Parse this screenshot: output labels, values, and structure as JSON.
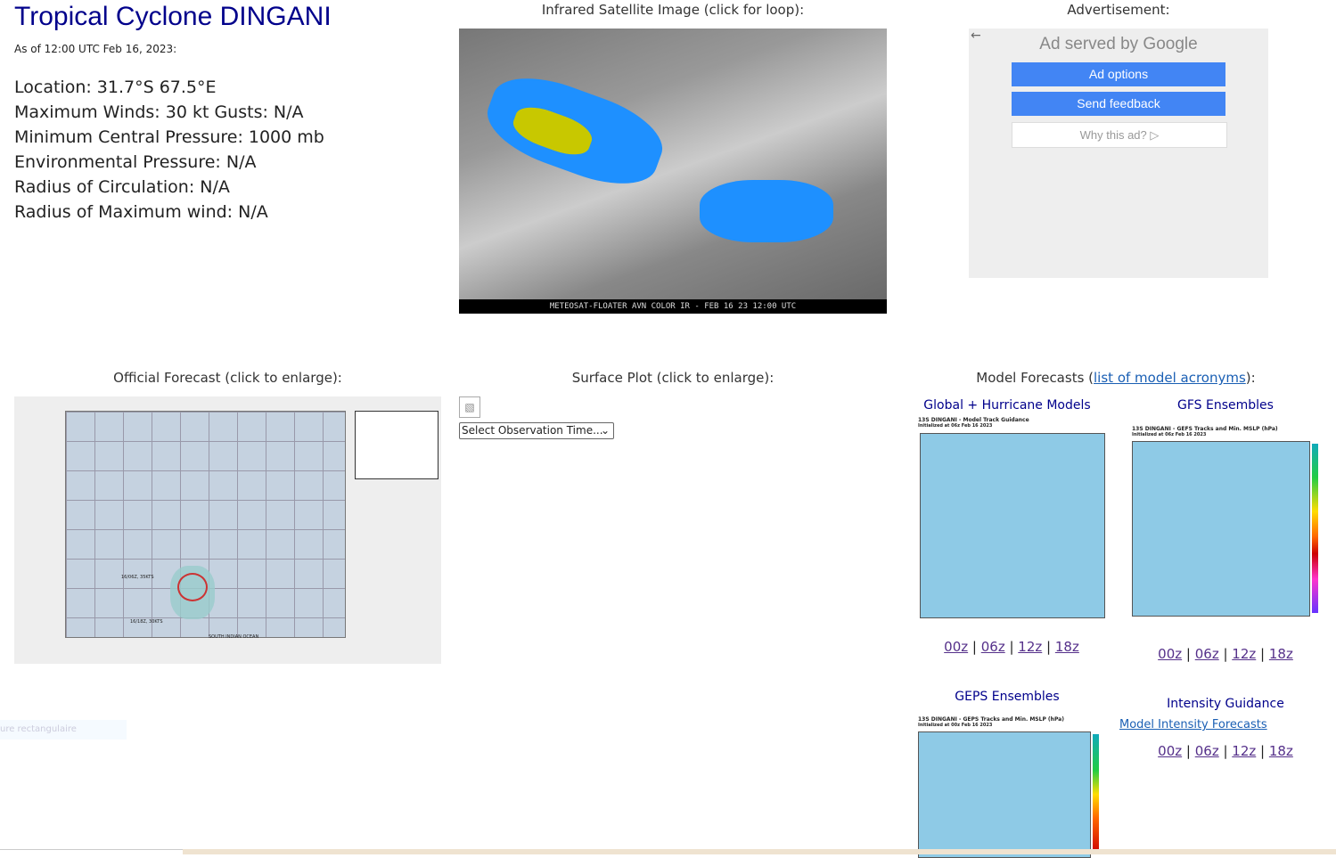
{
  "title": "Tropical Cyclone DINGANI",
  "as_of": "As of 12:00 UTC Feb 16, 2023:",
  "info": [
    "Location: 31.7°S 67.5°E",
    "Maximum Winds: 30 kt  Gusts: N/A",
    "Minimum Central Pressure: 1000 mb",
    "Environmental Pressure: N/A",
    "Radius of Circulation: N/A",
    "Radius of Maximum wind: N/A"
  ],
  "satellite": {
    "caption": "Infrared Satellite Image (click for loop):",
    "footer": "METEOSAT-FLOATER AVN COLOR IR - FEB 16 23 12:00 UTC"
  },
  "ad": {
    "caption": "Advertisement:",
    "served": "Ad served by Google",
    "options": "Ad options",
    "feedback": "Send feedback",
    "why": "Why this ad? ▷"
  },
  "official": {
    "caption": "Official Forecast (click to enlarge):",
    "label1": "16/06Z, 35KTS",
    "label2": "16/18Z, 30KTS",
    "ocean": "SOUTH INDIAN OCEAN"
  },
  "surface": {
    "caption": "Surface Plot (click to enlarge):",
    "select": "Select Observation Time..."
  },
  "models": {
    "caption_pre": "Model Forecasts (",
    "link": "list of model acronyms",
    "caption_post": "):",
    "global": {
      "title": "Global + Hurricane Models",
      "img_title": "13S DINGANI - Model Track Guidance",
      "img_sub": "Initialized at 06z Feb 16 2023"
    },
    "gfs": {
      "title": "GFS Ensembles",
      "img_title": "13S DINGANI - GEFS Tracks and Min. MSLP (hPa)",
      "img_sub": "Initialized at 06z Feb 16 2023"
    },
    "geps": {
      "title": "GEPS Ensembles",
      "img_title": "13S DINGANI - GEPS Tracks and Min. MSLP (hPa)",
      "img_sub": "Initialized at 00z Feb 16 2023"
    },
    "intensity": {
      "title": "Intensity Guidance",
      "link": "Model Intensity Forecasts"
    },
    "times": [
      "00z",
      "06z",
      "12z",
      "18z"
    ]
  },
  "overlay": "ure rectangulaire"
}
